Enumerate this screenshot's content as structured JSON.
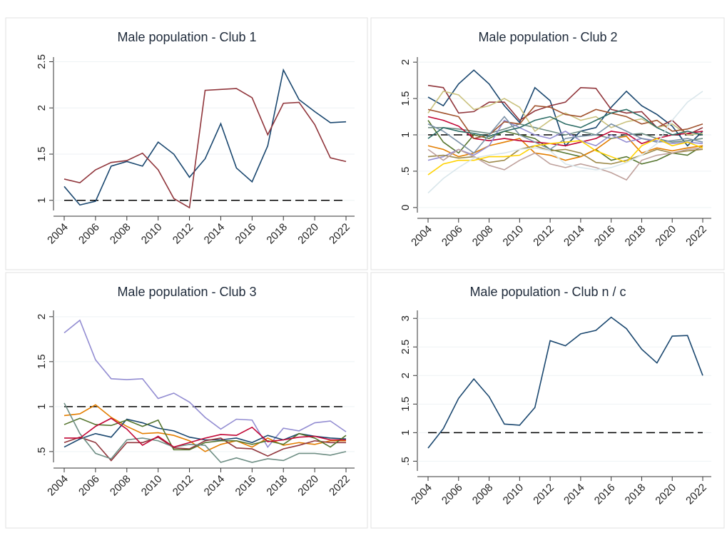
{
  "chart_data": [
    {
      "type": "line",
      "title": "Male population - Club 1",
      "x": [
        2004,
        2005,
        2006,
        2007,
        2008,
        2009,
        2010,
        2011,
        2012,
        2013,
        2014,
        2015,
        2016,
        2017,
        2018,
        2019,
        2020,
        2021,
        2022
      ],
      "xlim": [
        2004,
        2022
      ],
      "xticks": [
        2004,
        2006,
        2008,
        2010,
        2012,
        2014,
        2016,
        2018,
        2020,
        2022
      ],
      "ylim": [
        0.89,
        2.55
      ],
      "yticks": [
        1,
        1.5,
        2,
        2.5
      ],
      "hline": 1,
      "series": [
        {
          "color": "#1a476f",
          "values": [
            1.15,
            0.95,
            0.99,
            1.37,
            1.42,
            1.37,
            1.63,
            1.5,
            1.25,
            1.45,
            1.83,
            1.35,
            1.2,
            1.59,
            2.41,
            2.09,
            1.96,
            1.84,
            1.85
          ]
        },
        {
          "color": "#90353b",
          "values": [
            1.23,
            1.19,
            1.33,
            1.41,
            1.43,
            1.51,
            1.33,
            1.02,
            0.92,
            2.19,
            2.2,
            2.21,
            2.11,
            1.71,
            2.05,
            2.06,
            1.82,
            1.46,
            1.42
          ]
        }
      ]
    },
    {
      "type": "line",
      "title": "Male population - Club 2",
      "x": [
        2004,
        2005,
        2006,
        2007,
        2008,
        2009,
        2010,
        2011,
        2012,
        2013,
        2014,
        2015,
        2016,
        2017,
        2018,
        2019,
        2020,
        2021,
        2022
      ],
      "xlim": [
        2004,
        2022
      ],
      "xticks": [
        2004,
        2006,
        2008,
        2010,
        2012,
        2014,
        2016,
        2018,
        2020,
        2022
      ],
      "ylim": [
        -0.07,
        2.07
      ],
      "yticks": [
        0,
        {
          "value": 0.5,
          "label": ".5"
        },
        1,
        1.5,
        2
      ],
      "hline": 1,
      "series": [
        {
          "color": "#1a476f",
          "values": [
            1.52,
            1.4,
            1.7,
            1.89,
            1.7,
            1.4,
            1.17,
            1.65,
            1.47,
            0.85,
            1.05,
            1.1,
            1.38,
            1.6,
            1.4,
            1.28,
            1.12,
            0.85,
            1.05
          ]
        },
        {
          "color": "#90353b",
          "values": [
            1.68,
            1.65,
            1.3,
            1.32,
            1.45,
            1.45,
            1.2,
            1.33,
            1.4,
            1.45,
            1.65,
            1.64,
            1.35,
            1.3,
            1.32,
            1.1,
            1.2,
            1.0,
            1.1
          ]
        },
        {
          "color": "#55752f",
          "values": [
            1.2,
            0.9,
            0.75,
            1.0,
            0.95,
            1.05,
            1.0,
            0.95,
            0.8,
            0.75,
            0.7,
            0.8,
            0.65,
            0.7,
            0.6,
            0.65,
            0.75,
            0.72,
            0.85
          ]
        },
        {
          "color": "#e37e00",
          "values": [
            0.85,
            0.8,
            0.7,
            0.75,
            0.85,
            0.9,
            0.95,
            0.75,
            0.72,
            0.65,
            0.7,
            0.8,
            0.95,
            0.98,
            0.75,
            0.82,
            0.78,
            0.82,
            0.85
          ]
        },
        {
          "color": "#6e8e84",
          "values": [
            1.1,
            1.1,
            1.08,
            1.05,
            1.02,
            1.08,
            1.15,
            1.1,
            1.05,
            1.0,
            1.05,
            1.0,
            0.95,
            1.0,
            1.02,
            0.95,
            0.9,
            0.92,
            0.95
          ]
        },
        {
          "color": "#c10534",
          "values": [
            1.25,
            1.2,
            1.12,
            0.95,
            0.92,
            0.95,
            0.92,
            0.9,
            0.88,
            0.85,
            0.9,
            0.95,
            1.05,
            1.02,
            0.88,
            0.95,
            1.0,
            1.02,
            1.05
          ]
        },
        {
          "color": "#938dd2",
          "values": [
            0.65,
            0.7,
            0.8,
            0.72,
            0.85,
            1.2,
            1.1,
            1.0,
            0.95,
            1.05,
            0.92,
            0.85,
            1.0,
            0.9,
            0.95,
            0.92,
            0.88,
            0.9,
            0.88
          ]
        },
        {
          "color": "#cac27e",
          "values": [
            1.3,
            1.6,
            1.55,
            1.35,
            1.4,
            1.5,
            1.38,
            1.05,
            1.2,
            1.3,
            1.2,
            1.25,
            1.1,
            1.18,
            1.22,
            1.1,
            1.15,
            1.0,
            1.02
          ]
        },
        {
          "color": "#a0522d",
          "values": [
            1.35,
            1.3,
            1.25,
            0.95,
            1.0,
            1.18,
            1.15,
            1.4,
            1.38,
            1.28,
            1.25,
            1.35,
            1.3,
            1.25,
            1.15,
            1.2,
            1.05,
            1.08,
            1.15
          ]
        },
        {
          "color": "#7b92a8",
          "values": [
            1.15,
            1.05,
            0.9,
            0.75,
            1.0,
            1.25,
            1.0,
            0.9,
            0.8,
            0.95,
            0.98,
            1.0,
            1.15,
            1.05,
            0.95,
            0.9,
            0.92,
            0.95,
            0.9
          ]
        },
        {
          "color": "#2d6d66",
          "values": [
            0.95,
            1.1,
            1.05,
            1.02,
            0.98,
            1.05,
            1.1,
            1.2,
            1.25,
            1.15,
            1.1,
            1.2,
            1.3,
            1.35,
            1.25,
            1.1,
            1.0,
            1.05,
            1.0
          ]
        },
        {
          "color": "#9c8847",
          "values": [
            0.7,
            0.72,
            0.68,
            0.7,
            0.62,
            0.65,
            0.8,
            0.85,
            0.78,
            0.8,
            0.75,
            0.62,
            0.6,
            0.65,
            0.72,
            0.8,
            0.75,
            0.78,
            0.8
          ]
        },
        {
          "color": "#bfa19c",
          "values": [
            0.8,
            0.65,
            0.8,
            0.7,
            0.58,
            0.52,
            0.65,
            0.75,
            0.6,
            0.55,
            0.6,
            0.55,
            0.48,
            0.38,
            0.65,
            0.72,
            0.75,
            0.8,
            0.82
          ]
        },
        {
          "color": "#ffd200",
          "values": [
            0.45,
            0.6,
            0.65,
            0.65,
            0.7,
            0.7,
            0.72,
            0.85,
            0.88,
            0.9,
            0.92,
            0.78,
            0.7,
            0.62,
            0.85,
            0.95,
            0.85,
            0.9,
            0.82
          ]
        },
        {
          "color": "#d9e6eb",
          "values": [
            0.2,
            0.4,
            0.55,
            0.68,
            0.72,
            0.75,
            0.8,
            0.82,
            0.78,
            0.6,
            0.55,
            0.52,
            0.55,
            0.62,
            0.72,
            0.88,
            1.2,
            1.45,
            1.6
          ]
        }
      ]
    },
    {
      "type": "line",
      "title": "Male population - Club 3",
      "x": [
        2004,
        2005,
        2006,
        2007,
        2008,
        2009,
        2010,
        2011,
        2012,
        2013,
        2014,
        2015,
        2016,
        2017,
        2018,
        2019,
        2020,
        2021,
        2022
      ],
      "xlim": [
        2004,
        2022
      ],
      "xticks": [
        2004,
        2006,
        2008,
        2010,
        2012,
        2014,
        2016,
        2018,
        2020,
        2022
      ],
      "ylim": [
        0.38,
        2.07
      ],
      "yticks": [
        {
          "value": 0.5,
          "label": ".5"
        },
        1,
        1.5,
        2
      ],
      "hline": 1,
      "series": [
        {
          "color": "#938dd2",
          "values": [
            1.82,
            1.96,
            1.52,
            1.31,
            1.3,
            1.31,
            1.09,
            1.15,
            1.05,
            0.88,
            0.75,
            0.86,
            0.85,
            0.55,
            0.76,
            0.73,
            0.82,
            0.84,
            0.72
          ]
        },
        {
          "color": "#e37e00",
          "values": [
            0.9,
            0.92,
            1.02,
            0.88,
            0.78,
            0.7,
            0.71,
            0.68,
            0.62,
            0.5,
            0.58,
            0.62,
            0.55,
            0.65,
            0.57,
            0.6,
            0.58,
            0.62,
            0.62
          ]
        },
        {
          "color": "#1a476f",
          "values": [
            0.55,
            0.64,
            0.7,
            0.66,
            0.86,
            0.82,
            0.76,
            0.73,
            0.66,
            0.63,
            0.63,
            0.65,
            0.6,
            0.68,
            0.63,
            0.7,
            0.67,
            0.65,
            0.64
          ]
        },
        {
          "color": "#90353b",
          "values": [
            0.6,
            0.66,
            0.6,
            0.4,
            0.6,
            0.6,
            0.66,
            0.54,
            0.53,
            0.62,
            0.65,
            0.54,
            0.53,
            0.45,
            0.53,
            0.57,
            0.62,
            0.6,
            0.6
          ]
        },
        {
          "color": "#55752f",
          "values": [
            0.8,
            0.87,
            0.8,
            0.79,
            0.85,
            0.78,
            0.85,
            0.52,
            0.52,
            0.6,
            0.62,
            0.62,
            0.58,
            0.62,
            0.58,
            0.7,
            0.65,
            0.55,
            0.68
          ]
        },
        {
          "color": "#6e8e84",
          "values": [
            1.04,
            0.7,
            0.48,
            0.42,
            0.63,
            0.65,
            0.62,
            0.55,
            0.58,
            0.57,
            0.38,
            0.43,
            0.38,
            0.42,
            0.4,
            0.48,
            0.48,
            0.46,
            0.5
          ]
        },
        {
          "color": "#c10534",
          "values": [
            0.65,
            0.65,
            0.78,
            0.87,
            0.75,
            0.57,
            0.67,
            0.55,
            0.6,
            0.65,
            0.69,
            0.68,
            0.77,
            0.61,
            0.63,
            0.66,
            0.67,
            0.63,
            0.63
          ]
        }
      ]
    },
    {
      "type": "line",
      "title": "Male population - Club n / c",
      "x": [
        2004,
        2005,
        2006,
        2007,
        2008,
        2009,
        2010,
        2011,
        2012,
        2013,
        2014,
        2015,
        2016,
        2017,
        2018,
        2019,
        2020,
        2021,
        2022
      ],
      "xlim": [
        2004,
        2022
      ],
      "xticks": [
        2004,
        2006,
        2008,
        2010,
        2012,
        2014,
        2016,
        2018,
        2020,
        2022
      ],
      "ylim": [
        0.33,
        3.14
      ],
      "yticks": [
        {
          "value": 0.5,
          "label": ".5"
        },
        1,
        1.5,
        2,
        2.5,
        3
      ],
      "hline": 1,
      "series": [
        {
          "color": "#1a476f",
          "values": [
            0.73,
            1.07,
            1.6,
            1.94,
            1.63,
            1.15,
            1.13,
            1.44,
            2.61,
            2.52,
            2.73,
            2.79,
            3.02,
            2.82,
            2.46,
            2.22,
            2.69,
            2.7,
            2.0
          ]
        }
      ]
    }
  ]
}
